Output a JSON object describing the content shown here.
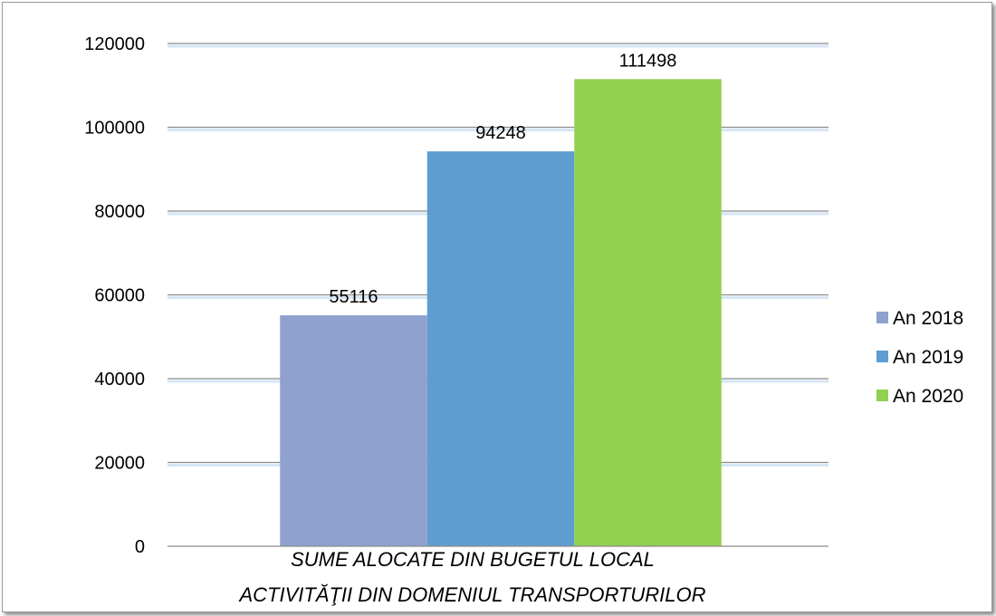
{
  "chart_data": {
    "type": "bar",
    "title": "",
    "xlabel": "",
    "ylabel": "",
    "categories": [
      "SUME ALOCATE  DIN BUGETUL LOCAL ACTIVITĂŢII DIN DOMENIUL TRANSPORTURILOR"
    ],
    "category_lines": [
      "SUME ALOCATE  DIN BUGETUL LOCAL",
      "ACTIVITĂŢII DIN DOMENIUL TRANSPORTURILOR"
    ],
    "series": [
      {
        "name": "An 2018",
        "values": [
          55116
        ],
        "color": "#8ea1cf"
      },
      {
        "name": "An 2019",
        "values": [
          94248
        ],
        "color": "#5f9dd1"
      },
      {
        "name": "An 2020",
        "values": [
          111498
        ],
        "color": "#92d050"
      }
    ],
    "ylim": [
      0,
      120000
    ],
    "yticks": [
      0,
      20000,
      40000,
      60000,
      80000,
      100000,
      120000
    ],
    "grid": true,
    "legend": "right"
  }
}
